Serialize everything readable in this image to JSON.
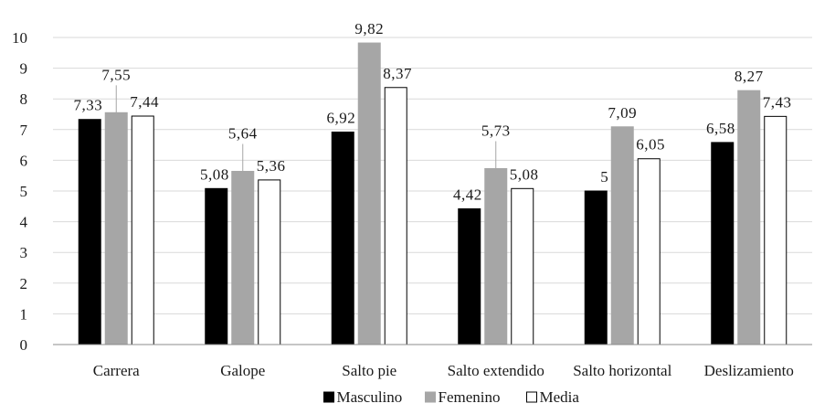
{
  "chart_data": {
    "type": "bar",
    "categories": [
      "Carrera",
      "Galope",
      "Salto pie",
      "Salto extendido",
      "Salto horizontal",
      "Deslizamiento"
    ],
    "series": [
      {
        "name": "Masculino",
        "values": [
          7.33,
          5.08,
          6.92,
          4.42,
          5,
          6.58
        ],
        "labels": [
          "7,33",
          "5,08",
          "6,92",
          "4,42",
          "5",
          "6,58"
        ],
        "color": "#000000"
      },
      {
        "name": "Femenino",
        "values": [
          7.55,
          5.64,
          9.82,
          5.73,
          7.09,
          8.27
        ],
        "labels": [
          "7,55",
          "5,64",
          "9,82",
          "5,73",
          "7,09",
          "8,27"
        ],
        "color": "#a6a6a6"
      },
      {
        "name": "Media",
        "values": [
          7.44,
          5.36,
          8.37,
          5.08,
          6.05,
          7.43
        ],
        "labels": [
          "7,44",
          "5,36",
          "8,37",
          "5,08",
          "6,05",
          "7,43"
        ],
        "color": "#ffffff"
      }
    ],
    "title": "",
    "xlabel": "",
    "ylabel": "",
    "ylim": [
      0,
      10
    ],
    "yticks": [
      "0",
      "1",
      "2",
      "3",
      "4",
      "5",
      "6",
      "7",
      "8",
      "9",
      "10"
    ],
    "grid": true,
    "legend_position": "bottom"
  }
}
